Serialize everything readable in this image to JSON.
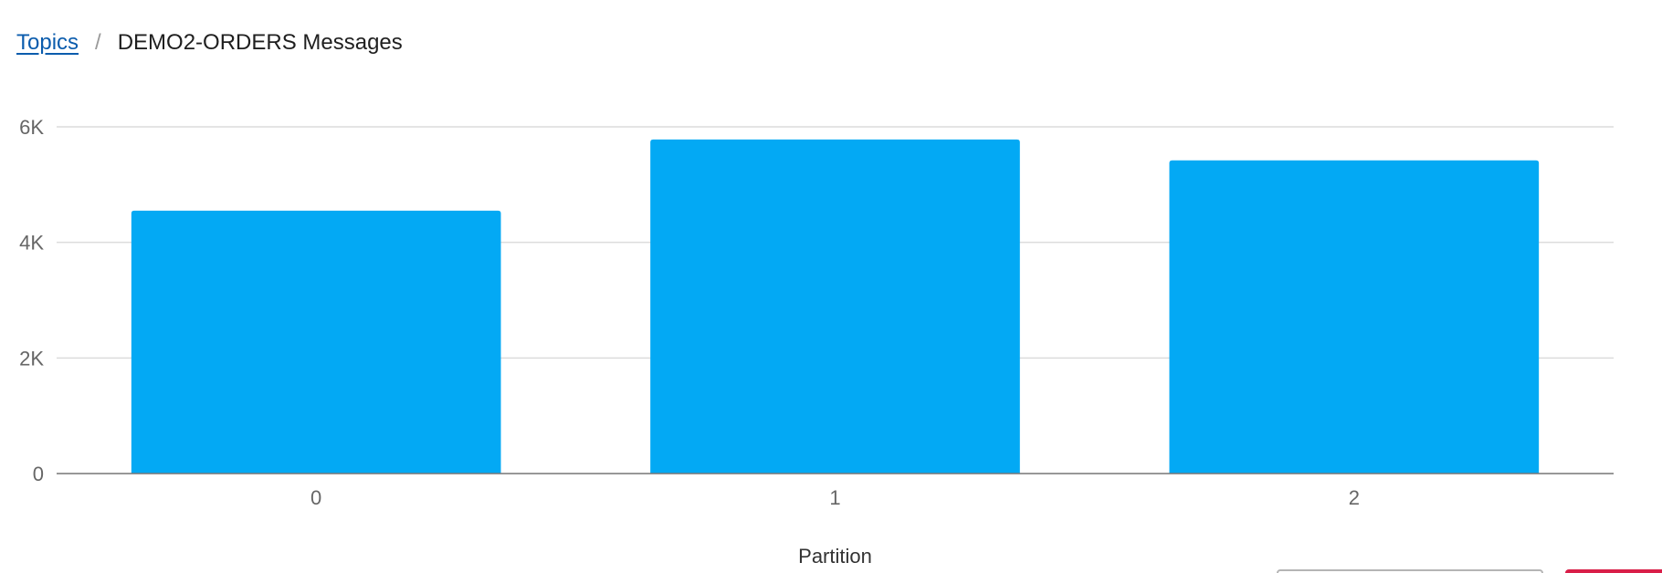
{
  "breadcrumb": {
    "parent_label": "Topics",
    "separator": "/",
    "current_label": "DEMO2-ORDERS Messages"
  },
  "chart_data": {
    "type": "bar",
    "title": "",
    "xlabel": "Partition",
    "ylabel": "",
    "categories": [
      "0",
      "1",
      "2"
    ],
    "series": [
      {
        "values": [
          4550,
          5780,
          5420
        ]
      }
    ],
    "ylim": [
      0,
      6000
    ],
    "yticks": [
      0,
      2000,
      4000,
      6000
    ],
    "ytick_labels": [
      "0",
      "2K",
      "4K",
      "6K"
    ],
    "grid": true,
    "legend": "none",
    "bar_color": "#03a9f4"
  }
}
